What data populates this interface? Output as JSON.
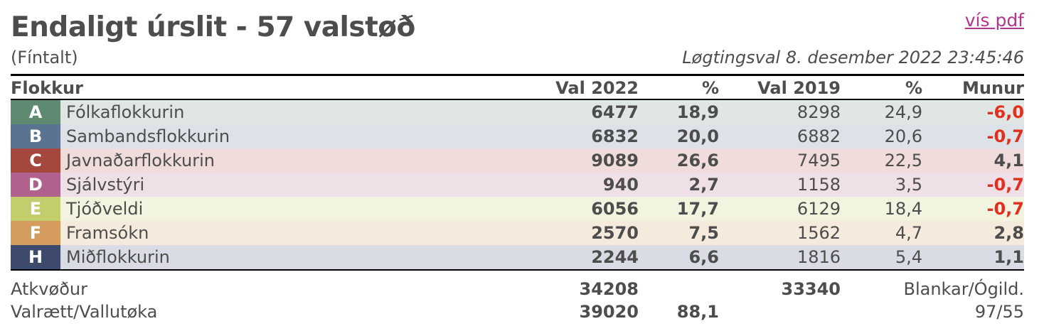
{
  "header": {
    "title": "Endaligt úrslit - 57 valstøð",
    "subtitle": "(Fíntalt)",
    "pdf_link": "vís pdf",
    "date": "Løgtingsval 8. desember 2022 23:45:46"
  },
  "columns": [
    "Flokkur",
    "Val 2022",
    "%",
    "Val 2019",
    "%",
    "Munur"
  ],
  "rows": [
    {
      "letter": "A",
      "name": "Fólkaflokkurin",
      "v2022": "6477",
      "p2022": "18,9",
      "v2019": "8298",
      "p2019": "24,9",
      "diff": "-6,0",
      "color": "#5e8a72",
      "bg": "#e0e6e4"
    },
    {
      "letter": "B",
      "name": "Sambandsflokkurin",
      "v2022": "6832",
      "p2022": "20,0",
      "v2019": "6882",
      "p2019": "20,6",
      "diff": "-0,7",
      "color": "#5a7390",
      "bg": "#dde2e8"
    },
    {
      "letter": "C",
      "name": "Javnaðarflokkurin",
      "v2022": "9089",
      "p2022": "26,6",
      "v2019": "7495",
      "p2019": "22,5",
      "diff": "4,1",
      "color": "#a4483e",
      "bg": "#f0dcdb"
    },
    {
      "letter": "D",
      "name": "Sjálvstýri",
      "v2022": "940",
      "p2022": "2,7",
      "v2019": "1158",
      "p2019": "3,5",
      "diff": "-0,7",
      "color": "#b0618e",
      "bg": "#efdfe7"
    },
    {
      "letter": "E",
      "name": "Tjóðveldi",
      "v2022": "6056",
      "p2022": "17,7",
      "v2019": "6129",
      "p2019": "18,4",
      "diff": "-0,7",
      "color": "#c3cd6c",
      "bg": "#f2f4df"
    },
    {
      "letter": "F",
      "name": "Framsókn",
      "v2022": "2570",
      "p2022": "7,5",
      "v2019": "1562",
      "p2019": "4,7",
      "diff": "2,8",
      "color": "#d49c5e",
      "bg": "#f6eadd"
    },
    {
      "letter": "H",
      "name": "Miðflokkurin",
      "v2022": "2244",
      "p2022": "6,6",
      "v2019": "1816",
      "p2019": "5,4",
      "diff": "1,1",
      "color": "#3e4a6b",
      "bg": "#d9dce4"
    }
  ],
  "footer": {
    "votes_label": "Atkvøður",
    "votes_2022": "34208",
    "votes_2019": "33340",
    "blank_label": "Blankar/Ógild.",
    "electorate_label": "Valrætt/Vallutøka",
    "electorate": "39020",
    "turnout": "88,1",
    "blank_value": "97/55"
  }
}
